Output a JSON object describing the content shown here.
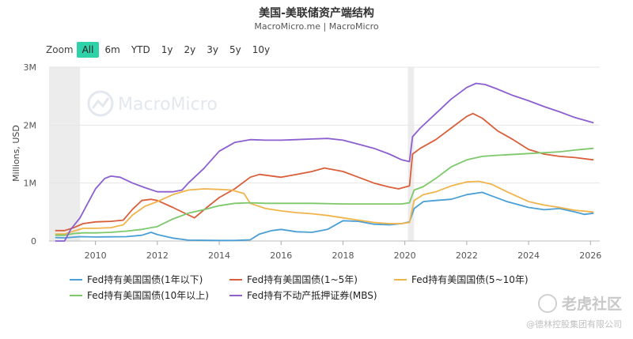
{
  "title": "美国-美联储资产端结构",
  "subtitle": "MacroMicro.me | MacroMicro",
  "zoom": {
    "label": "Zoom",
    "buttons": [
      "All",
      "6m",
      "YTD",
      "1y",
      "2y",
      "3y",
      "5y",
      "10y"
    ],
    "active": "All"
  },
  "watermark": "MacroMicro",
  "bottom_watermark": {
    "brand": "老虎社区",
    "copyright": "@德林控股集团有限公司"
  },
  "chart_data": {
    "type": "line",
    "title": "美国-美联储资产端结构",
    "ylabel": "Millions, USD",
    "xlim": [
      2008.5,
      2026.3
    ],
    "ylim": [
      0,
      3000000
    ],
    "yticks": [
      {
        "value": 0,
        "label": "0"
      },
      {
        "value": 1000000,
        "label": "1M"
      },
      {
        "value": 2000000,
        "label": "2M"
      },
      {
        "value": 3000000,
        "label": "3M"
      }
    ],
    "xticks": [
      2010,
      2012,
      2014,
      2016,
      2018,
      2020,
      2022,
      2024,
      2026
    ],
    "recession_bands": [
      [
        2008.5,
        2009.5
      ],
      [
        2020.1,
        2020.3
      ]
    ],
    "legend_position": "bottom",
    "series": [
      {
        "name": "Fed持有美国国债(1年以下)",
        "color": "#4a9fd5",
        "points": [
          [
            2008.7,
            60000
          ],
          [
            2009.0,
            55000
          ],
          [
            2009.5,
            75000
          ],
          [
            2010.0,
            70000
          ],
          [
            2011.0,
            75000
          ],
          [
            2011.5,
            100000
          ],
          [
            2011.8,
            150000
          ],
          [
            2012.0,
            110000
          ],
          [
            2012.5,
            50000
          ],
          [
            2013.0,
            15000
          ],
          [
            2014.0,
            10000
          ],
          [
            2014.5,
            10000
          ],
          [
            2015.0,
            20000
          ],
          [
            2015.3,
            120000
          ],
          [
            2015.7,
            180000
          ],
          [
            2016.0,
            200000
          ],
          [
            2016.5,
            160000
          ],
          [
            2017.0,
            150000
          ],
          [
            2017.5,
            200000
          ],
          [
            2018.0,
            350000
          ],
          [
            2018.5,
            340000
          ],
          [
            2019.0,
            290000
          ],
          [
            2019.5,
            280000
          ],
          [
            2019.9,
            300000
          ],
          [
            2020.15,
            330000
          ],
          [
            2020.3,
            560000
          ],
          [
            2020.6,
            680000
          ],
          [
            2021.0,
            700000
          ],
          [
            2021.5,
            720000
          ],
          [
            2022.0,
            800000
          ],
          [
            2022.5,
            840000
          ],
          [
            2022.8,
            780000
          ],
          [
            2023.3,
            680000
          ],
          [
            2024.0,
            580000
          ],
          [
            2024.5,
            540000
          ],
          [
            2025.0,
            560000
          ],
          [
            2025.5,
            500000
          ],
          [
            2025.8,
            460000
          ],
          [
            2026.1,
            480000
          ]
        ]
      },
      {
        "name": "Fed持有美国国债(1~5年)",
        "color": "#d95f3b",
        "points": [
          [
            2008.7,
            180000
          ],
          [
            2009.0,
            180000
          ],
          [
            2009.3,
            230000
          ],
          [
            2009.6,
            300000
          ],
          [
            2010.0,
            330000
          ],
          [
            2010.5,
            340000
          ],
          [
            2010.9,
            360000
          ],
          [
            2011.2,
            550000
          ],
          [
            2011.5,
            700000
          ],
          [
            2011.8,
            720000
          ],
          [
            2012.0,
            700000
          ],
          [
            2012.5,
            580000
          ],
          [
            2013.0,
            450000
          ],
          [
            2013.2,
            400000
          ],
          [
            2013.6,
            580000
          ],
          [
            2014.0,
            750000
          ],
          [
            2014.5,
            900000
          ],
          [
            2015.0,
            1100000
          ],
          [
            2015.3,
            1150000
          ],
          [
            2016.0,
            1100000
          ],
          [
            2016.5,
            1150000
          ],
          [
            2017.0,
            1200000
          ],
          [
            2017.4,
            1260000
          ],
          [
            2018.0,
            1200000
          ],
          [
            2018.5,
            1100000
          ],
          [
            2019.0,
            1000000
          ],
          [
            2019.5,
            930000
          ],
          [
            2019.8,
            900000
          ],
          [
            2020.15,
            950000
          ],
          [
            2020.25,
            1500000
          ],
          [
            2020.5,
            1600000
          ],
          [
            2021.0,
            1750000
          ],
          [
            2021.5,
            1950000
          ],
          [
            2022.0,
            2150000
          ],
          [
            2022.2,
            2200000
          ],
          [
            2022.5,
            2120000
          ],
          [
            2023.0,
            1900000
          ],
          [
            2023.5,
            1750000
          ],
          [
            2024.0,
            1580000
          ],
          [
            2024.5,
            1500000
          ],
          [
            2025.0,
            1460000
          ],
          [
            2025.5,
            1440000
          ],
          [
            2026.1,
            1400000
          ]
        ]
      },
      {
        "name": "Fed持有美国国债(5~10年)",
        "color": "#f0b44c",
        "points": [
          [
            2008.7,
            120000
          ],
          [
            2009.0,
            120000
          ],
          [
            2009.3,
            170000
          ],
          [
            2009.6,
            220000
          ],
          [
            2010.0,
            220000
          ],
          [
            2010.5,
            230000
          ],
          [
            2010.9,
            280000
          ],
          [
            2011.2,
            450000
          ],
          [
            2011.6,
            600000
          ],
          [
            2012.0,
            680000
          ],
          [
            2012.5,
            800000
          ],
          [
            2013.0,
            880000
          ],
          [
            2013.5,
            900000
          ],
          [
            2014.0,
            890000
          ],
          [
            2014.4,
            880000
          ],
          [
            2014.8,
            820000
          ],
          [
            2015.0,
            650000
          ],
          [
            2015.5,
            560000
          ],
          [
            2016.0,
            520000
          ],
          [
            2016.5,
            490000
          ],
          [
            2017.0,
            470000
          ],
          [
            2017.5,
            440000
          ],
          [
            2018.0,
            400000
          ],
          [
            2018.5,
            360000
          ],
          [
            2019.0,
            320000
          ],
          [
            2019.5,
            300000
          ],
          [
            2019.9,
            300000
          ],
          [
            2020.15,
            320000
          ],
          [
            2020.3,
            700000
          ],
          [
            2020.6,
            800000
          ],
          [
            2021.0,
            850000
          ],
          [
            2021.5,
            950000
          ],
          [
            2022.0,
            1020000
          ],
          [
            2022.4,
            1030000
          ],
          [
            2022.8,
            980000
          ],
          [
            2023.3,
            850000
          ],
          [
            2024.0,
            680000
          ],
          [
            2024.5,
            620000
          ],
          [
            2025.0,
            580000
          ],
          [
            2025.5,
            530000
          ],
          [
            2026.1,
            500000
          ]
        ]
      },
      {
        "name": "Fed持有美国国债(10年以上)",
        "color": "#7dc86a",
        "points": [
          [
            2008.7,
            100000
          ],
          [
            2009.0,
            100000
          ],
          [
            2009.3,
            130000
          ],
          [
            2009.6,
            140000
          ],
          [
            2010.0,
            140000
          ],
          [
            2010.5,
            150000
          ],
          [
            2011.0,
            170000
          ],
          [
            2011.5,
            200000
          ],
          [
            2012.0,
            250000
          ],
          [
            2012.5,
            380000
          ],
          [
            2013.0,
            480000
          ],
          [
            2013.5,
            540000
          ],
          [
            2014.0,
            610000
          ],
          [
            2014.5,
            650000
          ],
          [
            2015.0,
            660000
          ],
          [
            2015.5,
            650000
          ],
          [
            2016.0,
            650000
          ],
          [
            2017.0,
            650000
          ],
          [
            2018.0,
            640000
          ],
          [
            2019.0,
            640000
          ],
          [
            2019.9,
            640000
          ],
          [
            2020.15,
            660000
          ],
          [
            2020.3,
            880000
          ],
          [
            2020.6,
            940000
          ],
          [
            2021.0,
            1080000
          ],
          [
            2021.5,
            1280000
          ],
          [
            2022.0,
            1400000
          ],
          [
            2022.5,
            1460000
          ],
          [
            2023.0,
            1480000
          ],
          [
            2024.0,
            1510000
          ],
          [
            2025.0,
            1540000
          ],
          [
            2025.5,
            1570000
          ],
          [
            2026.1,
            1600000
          ]
        ]
      },
      {
        "name": "Fed持有不动产抵押证券(MBS)",
        "color": "#8b5fd0",
        "points": [
          [
            2008.7,
            0
          ],
          [
            2009.0,
            0
          ],
          [
            2009.2,
            200000
          ],
          [
            2009.5,
            400000
          ],
          [
            2009.8,
            700000
          ],
          [
            2010.0,
            900000
          ],
          [
            2010.3,
            1080000
          ],
          [
            2010.5,
            1120000
          ],
          [
            2010.8,
            1100000
          ],
          [
            2011.2,
            1000000
          ],
          [
            2011.6,
            920000
          ],
          [
            2012.0,
            850000
          ],
          [
            2012.5,
            850000
          ],
          [
            2012.8,
            880000
          ],
          [
            2013.0,
            1000000
          ],
          [
            2013.5,
            1250000
          ],
          [
            2014.0,
            1550000
          ],
          [
            2014.5,
            1700000
          ],
          [
            2015.0,
            1750000
          ],
          [
            2015.5,
            1740000
          ],
          [
            2016.0,
            1740000
          ],
          [
            2016.5,
            1750000
          ],
          [
            2017.0,
            1760000
          ],
          [
            2017.5,
            1770000
          ],
          [
            2018.0,
            1740000
          ],
          [
            2018.5,
            1670000
          ],
          [
            2019.0,
            1600000
          ],
          [
            2019.5,
            1500000
          ],
          [
            2019.9,
            1400000
          ],
          [
            2020.15,
            1370000
          ],
          [
            2020.25,
            1800000
          ],
          [
            2020.5,
            1950000
          ],
          [
            2021.0,
            2200000
          ],
          [
            2021.5,
            2450000
          ],
          [
            2022.0,
            2650000
          ],
          [
            2022.3,
            2720000
          ],
          [
            2022.6,
            2700000
          ],
          [
            2023.0,
            2620000
          ],
          [
            2023.5,
            2510000
          ],
          [
            2024.0,
            2420000
          ],
          [
            2024.5,
            2320000
          ],
          [
            2025.0,
            2230000
          ],
          [
            2025.5,
            2130000
          ],
          [
            2026.1,
            2040000
          ]
        ]
      }
    ]
  }
}
